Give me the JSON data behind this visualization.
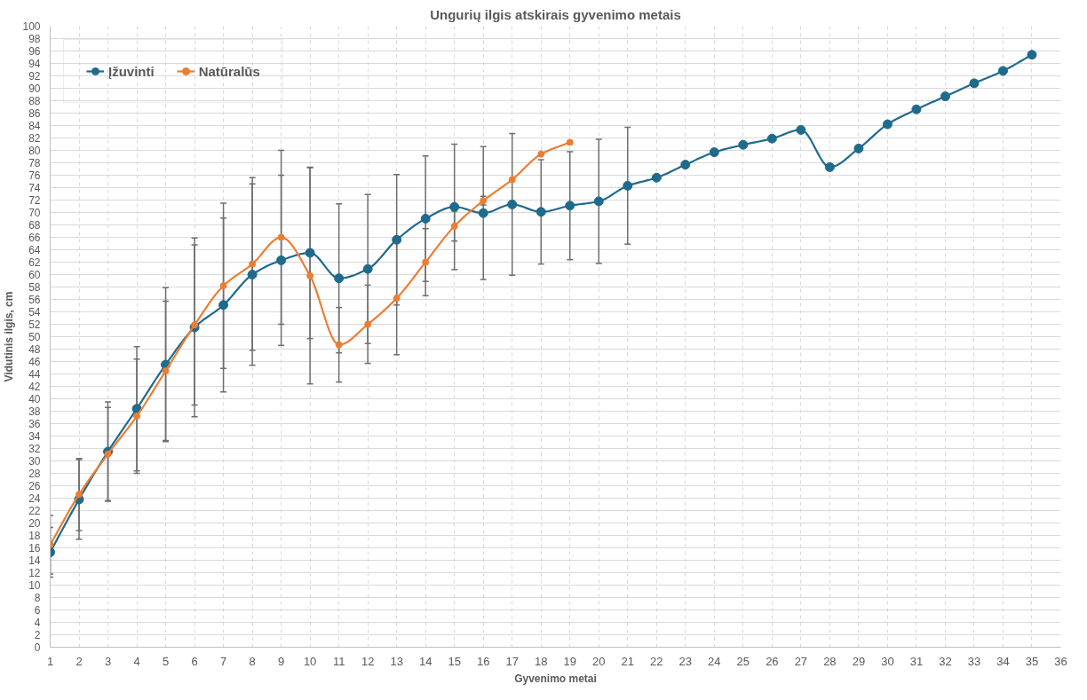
{
  "chart_data": {
    "type": "line",
    "title": "Ungurių ilgis atskirais gyvenimo metais",
    "xlabel": "Gyvenimo metai",
    "ylabel": "Vidutinis ilgis, cm",
    "x": [
      1,
      2,
      3,
      4,
      5,
      6,
      7,
      8,
      9,
      10,
      11,
      12,
      13,
      14,
      15,
      16,
      17,
      18,
      19,
      20,
      21,
      22,
      23,
      24,
      25,
      26,
      27,
      28,
      29,
      30,
      31,
      32,
      33,
      34,
      35
    ],
    "series": [
      {
        "name": "Įžuvinti",
        "color": "#1f6b8c",
        "values": [
          15.3,
          23.8,
          31.5,
          38.4,
          45.5,
          51.5,
          55.1,
          60,
          62.3,
          63.5,
          59.4,
          60.9,
          65.6,
          69,
          70.9,
          69.9,
          71.3,
          70.1,
          71.1,
          71.8,
          74.3,
          75.6,
          77.7,
          79.7,
          80.9,
          81.9,
          83.3,
          77.3,
          80.3,
          84.2,
          86.6,
          88.7,
          90.8,
          92.8,
          95.4
        ],
        "errors": [
          4,
          6.4,
          8,
          10,
          12.4,
          14.4,
          14,
          14.6,
          13.7,
          13.8,
          12,
          12,
          10.5,
          10.1,
          10.1,
          10.7,
          11.4,
          8.4,
          8.7,
          10,
          9.4,
          null,
          null,
          null,
          null,
          null,
          null,
          null,
          null,
          null,
          null,
          null,
          null,
          null,
          null
        ]
      },
      {
        "name": "Natūralūs",
        "color": "#ed7d31",
        "x": [
          1,
          2,
          3,
          4,
          5,
          6,
          7,
          8,
          9,
          10,
          11,
          12,
          13,
          14,
          15,
          16,
          17,
          18,
          19
        ],
        "values": [
          16.5,
          24.6,
          31.1,
          37.2,
          44.5,
          51.9,
          58.2,
          61.7,
          66,
          59.8,
          48.7,
          52,
          56.2,
          62,
          67.8,
          71.9,
          75.3,
          79.4,
          81.3
        ],
        "errors": [
          4.7,
          5.8,
          7.5,
          9.2,
          11.2,
          12.9,
          13.3,
          13.9,
          14,
          17.4,
          6,
          6.3,
          9.1,
          5.4,
          2.4,
          0.7,
          null,
          null,
          null
        ]
      }
    ],
    "xlim": [
      1,
      36
    ],
    "xticks": [
      1,
      2,
      3,
      4,
      5,
      6,
      7,
      8,
      9,
      10,
      11,
      12,
      13,
      14,
      15,
      16,
      17,
      18,
      19,
      20,
      21,
      22,
      23,
      24,
      25,
      26,
      27,
      28,
      29,
      30,
      31,
      32,
      33,
      34,
      35,
      36
    ],
    "ylim": [
      0,
      100
    ],
    "yticks": [
      0,
      2,
      4,
      6,
      8,
      10,
      12,
      14,
      16,
      18,
      20,
      22,
      24,
      26,
      28,
      30,
      32,
      34,
      36,
      38,
      40,
      42,
      44,
      46,
      48,
      50,
      52,
      54,
      56,
      58,
      60,
      62,
      64,
      66,
      68,
      70,
      72,
      74,
      76,
      78,
      80,
      82,
      84,
      86,
      88,
      90,
      92,
      94,
      96,
      98,
      100
    ],
    "grid": true,
    "legend": "top left",
    "marker": "circle",
    "line_style": "solid"
  }
}
